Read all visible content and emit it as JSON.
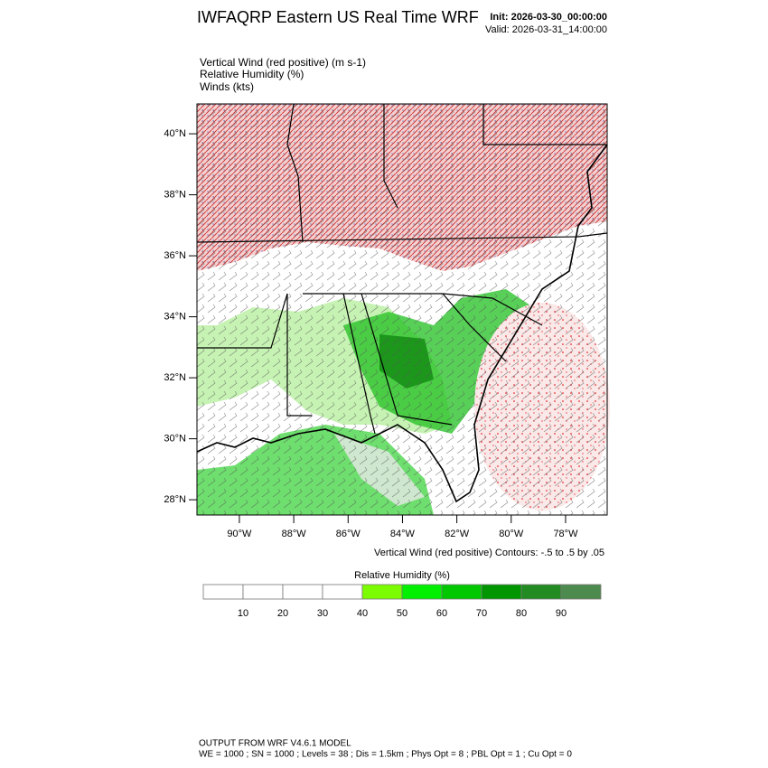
{
  "header": {
    "title": "IWFAQRP Eastern US Real Time WRF",
    "init": "Init: 2026-03-30_00:00:00",
    "valid": "Valid: 2026-03-31_14:00:00"
  },
  "fields": [
    "Vertical Wind (red positive)   (m s-1)",
    "Relative Humidity   (%)",
    "Winds   (kts)"
  ],
  "map": {
    "lat_range": [
      27.5,
      40.98
    ],
    "lon_range": [
      -91.56,
      -76.47
    ],
    "lat_ticks": [
      {
        "value": 40,
        "label": "40°N"
      },
      {
        "value": 38,
        "label": "38°N"
      },
      {
        "value": 36,
        "label": "36°N"
      },
      {
        "value": 34,
        "label": "34°N"
      },
      {
        "value": 32,
        "label": "32°N"
      },
      {
        "value": 30,
        "label": "30°N"
      },
      {
        "value": 28,
        "label": "28°N"
      }
    ],
    "lon_ticks": [
      {
        "value": -90,
        "label": "90°W"
      },
      {
        "value": -88,
        "label": "88°W"
      },
      {
        "value": -86,
        "label": "86°W"
      },
      {
        "value": -84,
        "label": "84°W"
      },
      {
        "value": -82,
        "label": "82°W"
      },
      {
        "value": -80,
        "label": "80°W"
      },
      {
        "value": -78,
        "label": "78°W"
      }
    ]
  },
  "contour_note": "Vertical Wind (red positive) Contours: -.5 to .5 by .05",
  "colorbar": {
    "title": "Relative Humidity  (%)",
    "labels": [
      10,
      20,
      30,
      40,
      50,
      60,
      70,
      80,
      90
    ],
    "colors": [
      "#ffffff",
      "#ffffff",
      "#ffffff",
      "#ffffff",
      "#7cfc00",
      "#00f000",
      "#00c800",
      "#009600",
      "#228b22",
      "#4d8a4d"
    ]
  },
  "footer": [
    "OUTPUT FROM WRF V4.6.1 MODEL",
    "WE = 1000 ; SN = 1000 ; Levels = 38 ; Dis = 1.5km ; Phys Opt = 8 ; PBL Opt = 1 ; Cu Opt = 0"
  ]
}
